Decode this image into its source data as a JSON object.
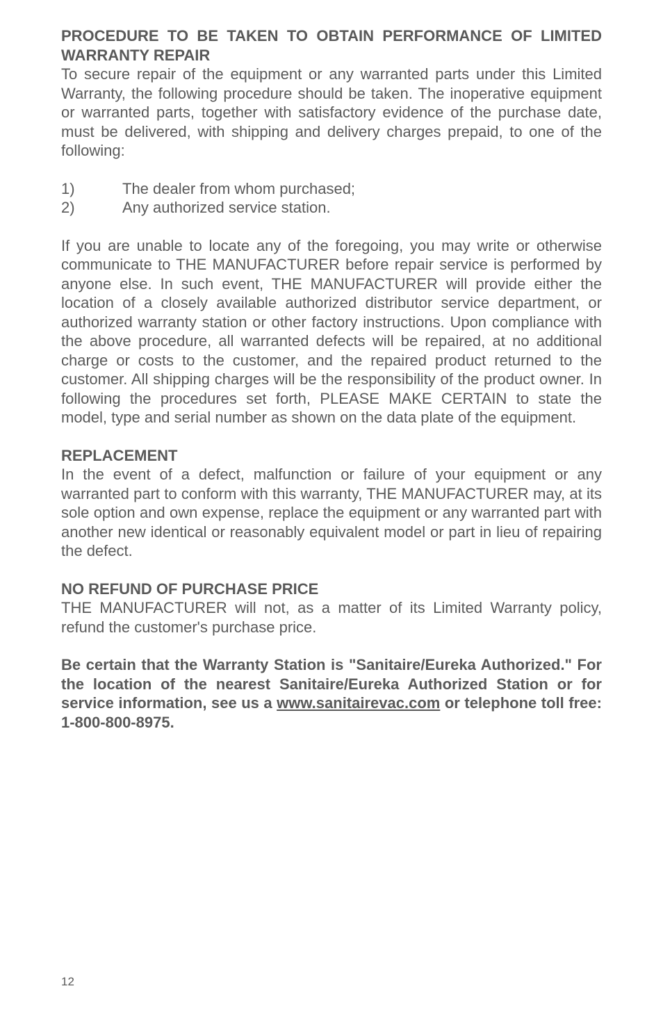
{
  "section1": {
    "heading": "PROCEDURE TO BE TAKEN TO OBTAIN PERFORMANCE OF LIMITED WARRANTY REPAIR",
    "para1": "To secure repair of the equipment or any warranted parts under this Limited Warranty, the following procedure should be taken. The inoperative equipment or warranted parts, together with satisfactory evidence of the purchase date, must be delivered, with shipping and delivery charges prepaid, to one of the following:",
    "list": [
      {
        "num": "1)",
        "text": "The dealer from whom purchased;"
      },
      {
        "num": "2)",
        "text": "Any authorized service station."
      }
    ],
    "para2": "If you are unable to locate any of the foregoing, you may write or otherwise communicate to THE MANUFACTURER before repair service is performed by anyone else. In such event, THE MANUFACTURER will provide either the location of a closely available authorized distributor service department, or authorized warranty station or other factory instructions. Upon compliance with the above procedure, all warranted defects will be repaired, at no additional charge or costs to the customer, and the repaired product returned to the customer. All shipping charges will be the responsibility of the product owner. In following the procedures set forth, PLEASE MAKE CERTAIN to state the model, type and serial number as shown on the data plate of the equipment."
  },
  "section2": {
    "heading": "REPLACEMENT",
    "para1": "In the event of a defect, malfunction or failure of your equipment or any warranted part to conform with this warranty, THE MANUFACTURER may, at its sole option and own expense, replace the equipment or any warranted part with another new identical or reasonably equivalent model or part in lieu of repairing the defect."
  },
  "section3": {
    "heading": "NO REFUND OF PURCHASE PRICE",
    "para1": "THE MANUFACTURER will not, as a matter of its Limited Warranty policy, refund the customer's purchase price."
  },
  "section4": {
    "part1": "Be certain that the Warranty Station is \"Sanitaire/Eureka Authorized.\" For the location of the nearest Sanitaire/Eureka Authorized Station or for service information, see us a ",
    "link": "www.sanitairevac.com",
    "part2": " or telephone toll free: 1-800-800-8975."
  },
  "pageNumber": "12"
}
